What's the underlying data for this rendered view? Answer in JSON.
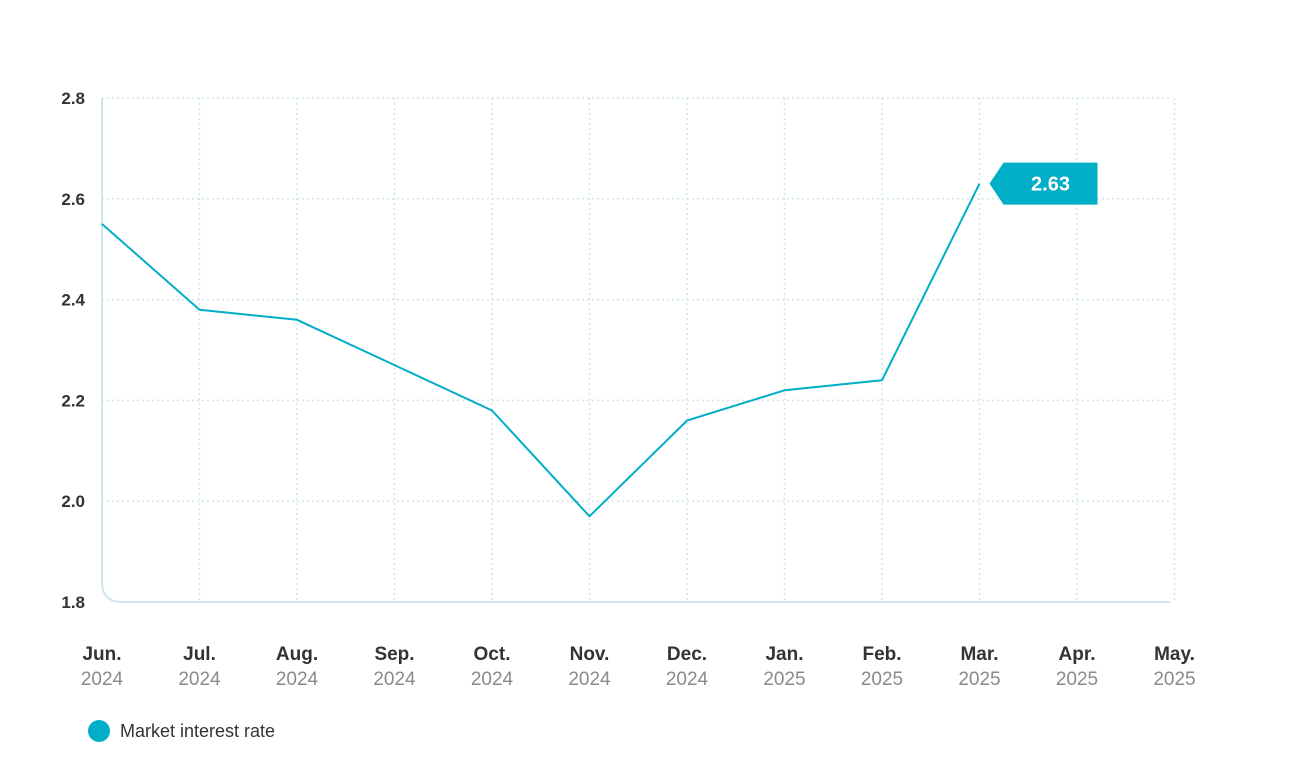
{
  "chart_data": {
    "type": "line",
    "x": [
      {
        "month": "Jun.",
        "year": "2024"
      },
      {
        "month": "Jul.",
        "year": "2024"
      },
      {
        "month": "Aug.",
        "year": "2024"
      },
      {
        "month": "Sep.",
        "year": "2024"
      },
      {
        "month": "Oct.",
        "year": "2024"
      },
      {
        "month": "Nov.",
        "year": "2024"
      },
      {
        "month": "Dec.",
        "year": "2024"
      },
      {
        "month": "Jan.",
        "year": "2025"
      },
      {
        "month": "Feb.",
        "year": "2025"
      },
      {
        "month": "Mar.",
        "year": "2025"
      },
      {
        "month": "Apr.",
        "year": "2025"
      },
      {
        "month": "May.",
        "year": "2025"
      }
    ],
    "series": [
      {
        "name": "Market interest rate",
        "color": "#00aec7",
        "values": [
          2.55,
          2.38,
          2.36,
          2.27,
          2.18,
          1.97,
          2.16,
          2.22,
          2.24,
          2.63,
          null,
          null
        ]
      }
    ],
    "ylim": [
      1.8,
      2.8
    ],
    "yticks": [
      "1.8",
      "2.0",
      "2.2",
      "2.4",
      "2.6",
      "2.8"
    ],
    "callout": {
      "label": "2.63",
      "index": 9
    },
    "grid": true,
    "legend_position": "bottom-left",
    "axis_color": "#cfe6ee",
    "grid_color": "#cfe6ee"
  }
}
